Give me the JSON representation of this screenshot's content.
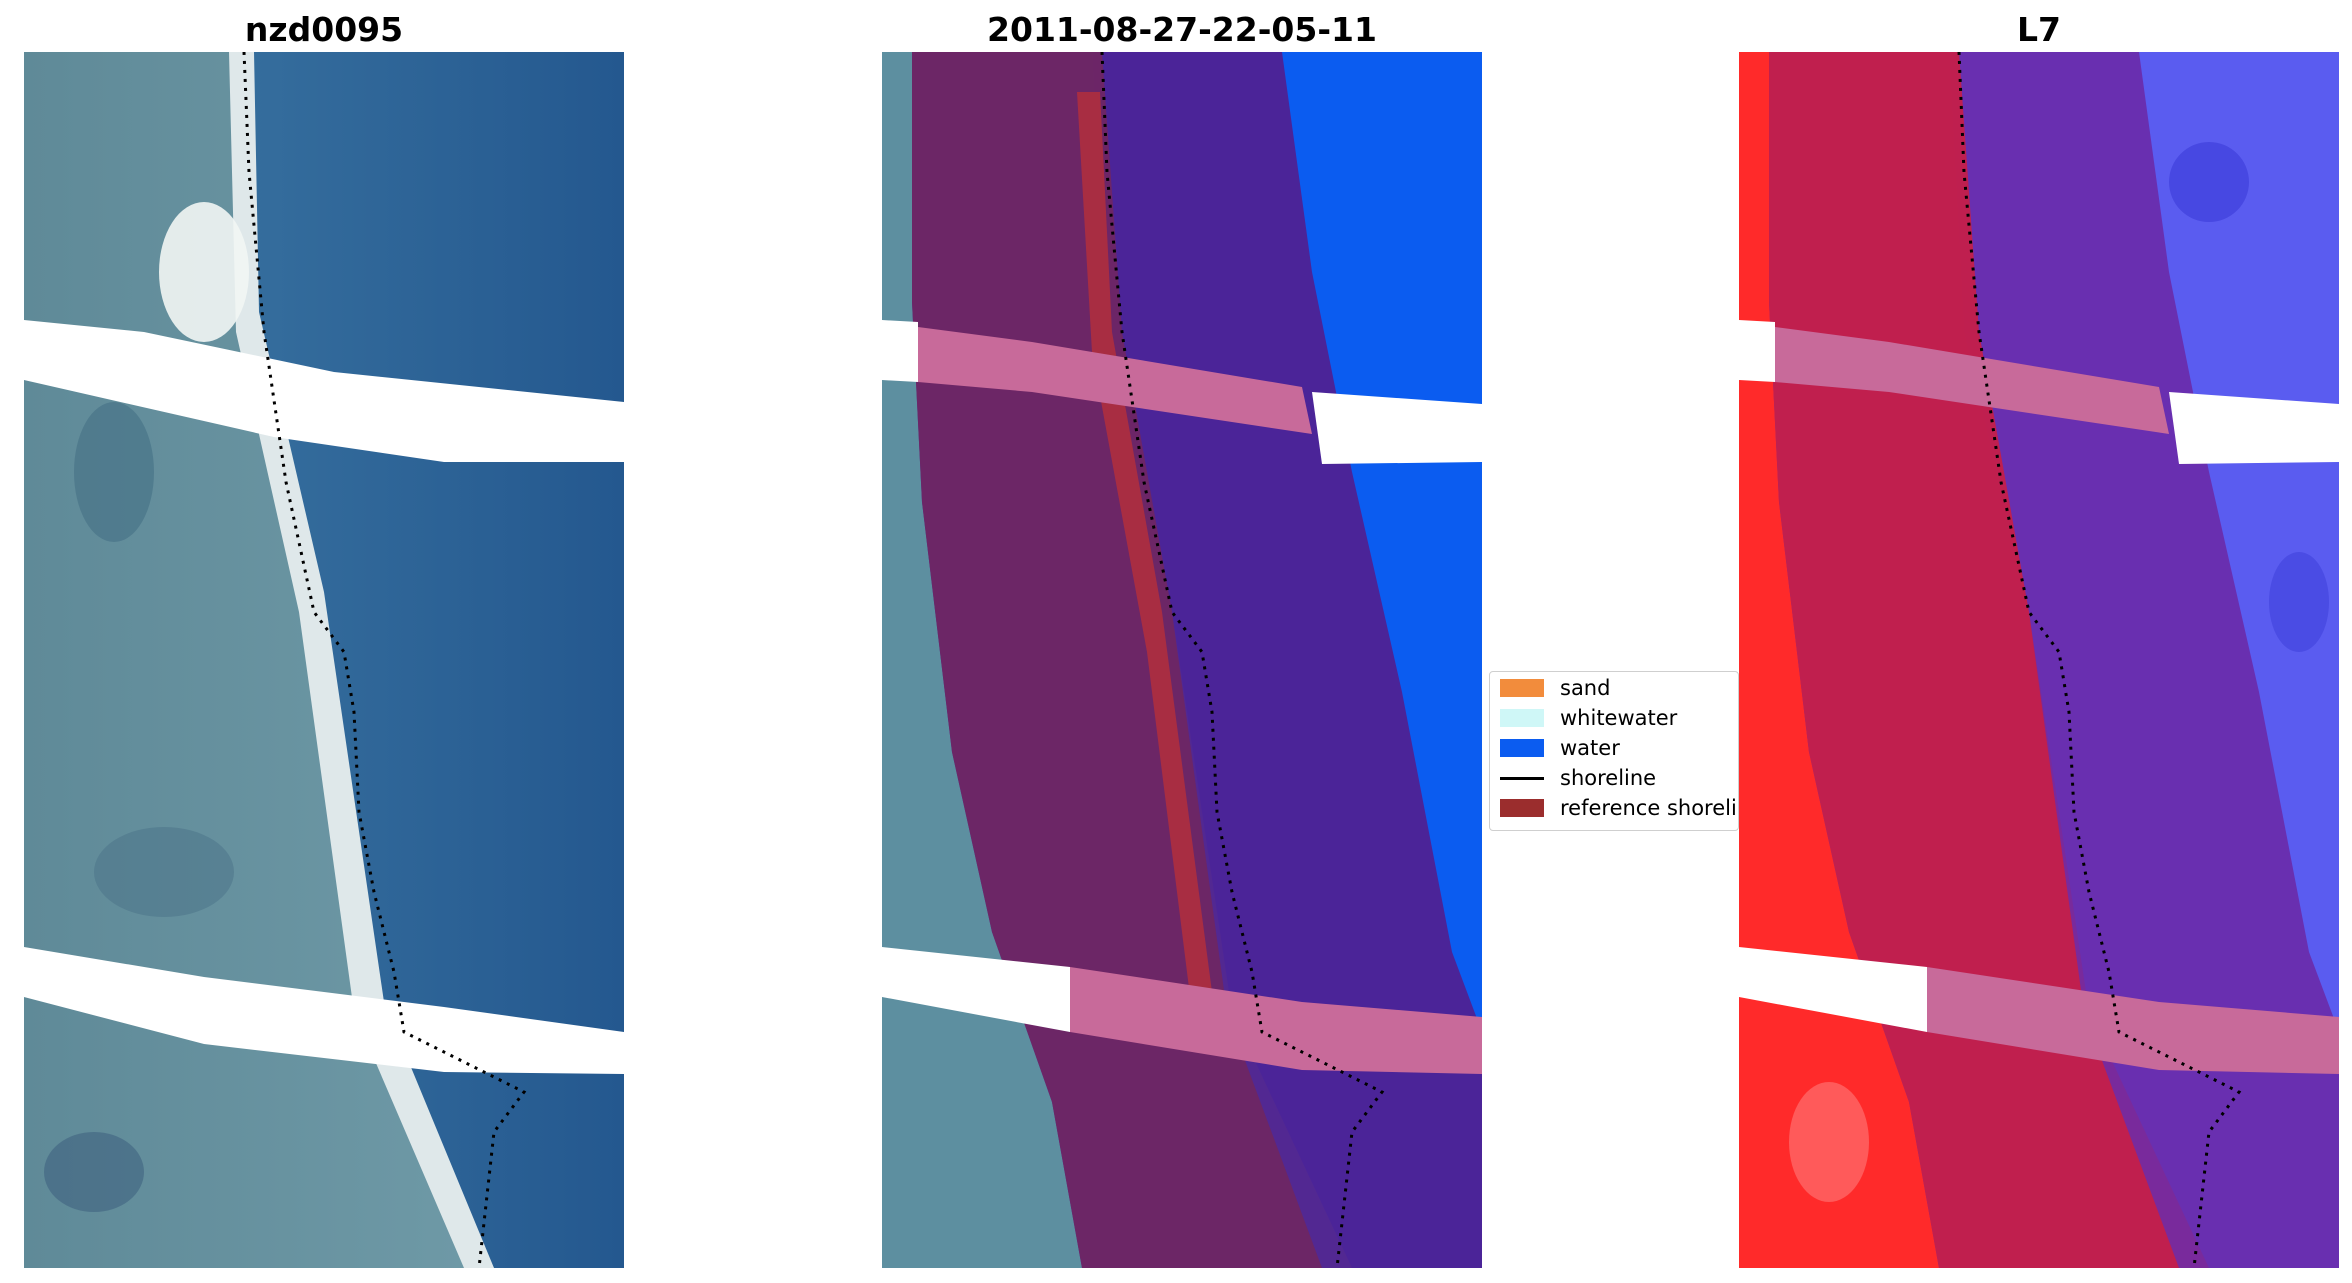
{
  "panels": {
    "left_title": "nzd0095",
    "middle_title": "2011-08-27-22-05-11",
    "right_title": "L7"
  },
  "legend": {
    "items": [
      {
        "label": "sand",
        "color": "#f28c3c"
      },
      {
        "label": "whitewater",
        "color": "#cff7f7"
      },
      {
        "label": "water",
        "color": "#0b5cf0"
      },
      {
        "label": "shoreline",
        "color": "#000000"
      },
      {
        "label": "reference shorelin",
        "color": "#9b2d2d"
      }
    ]
  },
  "colors": {
    "ocean": "#2e6ea0",
    "land": "#5a8696",
    "beach": "#dfe8ea",
    "water_class": "#0b5cf0",
    "buffer_overlay": "#7a1f6a",
    "reference_band": "#c86a9a",
    "ndwi_land": "#ff2a2a",
    "ndwi_water": "#5a5cf0"
  }
}
